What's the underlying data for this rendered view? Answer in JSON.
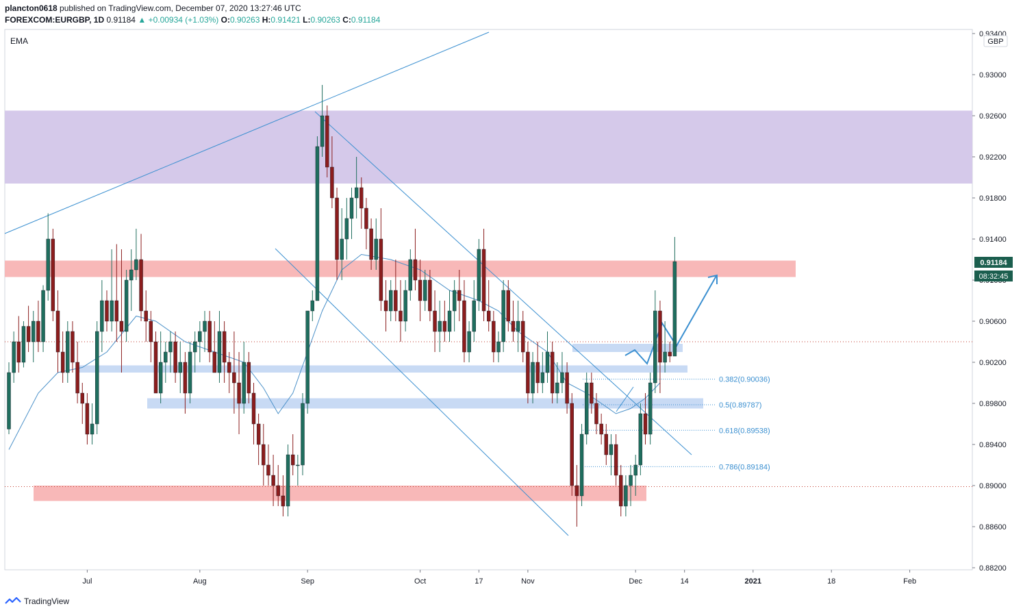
{
  "header": {
    "user": "plancton0618",
    "published": "published on TradingView.com, December 07, 2020 13:27:46 UTC",
    "symbol": "FOREXCOM:EURGBP, 1D",
    "last": "0.91184",
    "arrow": "▲",
    "change": "+0.00934 (+1.03%)",
    "o_label": "O:",
    "o_value": "0.90263",
    "h_label": "H:",
    "h_value": "0.91421",
    "l_label": "L:",
    "l_value": "0.90263",
    "c_label": "C:",
    "c_value": "0.91184"
  },
  "indicator_label": "EMA",
  "currency_badge": "GBP",
  "price_tag": "0.91184",
  "countdown_tag": "08:32:45",
  "brand": "TradingView",
  "colors": {
    "up": "#1f6e5e",
    "down": "#8b1d1d",
    "ema": "#4a90c8",
    "trend": "#3a8fd0",
    "resistance_zone": "#d5c9ea",
    "sr_red": "#f8b8b8",
    "sr_blue": "#c8daf4",
    "fib": "#3a8fd0",
    "price_bg": "#1b5e4e",
    "dotted_red": "#c0392b"
  },
  "chart_data": {
    "type": "candlestick",
    "yaxis": {
      "min": 0.882,
      "max": 0.934,
      "ticks": [
        "0.93400",
        "0.93000",
        "0.92600",
        "0.92200",
        "0.91800",
        "0.91400",
        "0.91000",
        "0.90600",
        "0.90200",
        "0.89800",
        "0.89400",
        "0.89000",
        "0.88600",
        "0.88200"
      ]
    },
    "xaxis": {
      "ticks": [
        {
          "label": "Jul",
          "bar": 16
        },
        {
          "label": "Aug",
          "bar": 39
        },
        {
          "label": "Sep",
          "bar": 61
        },
        {
          "label": "Oct",
          "bar": 84
        },
        {
          "label": "17",
          "bar": 96
        },
        {
          "label": "Nov",
          "bar": 106
        },
        {
          "label": "Dec",
          "bar": 128
        },
        {
          "label": "14",
          "bar": 138
        },
        {
          "label": "2021",
          "bar": 152
        },
        {
          "label": "18",
          "bar": 168
        },
        {
          "label": "Feb",
          "bar": 184
        }
      ]
    },
    "candles": [
      [
        0.8955,
        0.902,
        0.895,
        0.901
      ],
      [
        0.901,
        0.905,
        0.9,
        0.904
      ],
      [
        0.904,
        0.9065,
        0.901,
        0.902
      ],
      [
        0.902,
        0.906,
        0.9015,
        0.9055
      ],
      [
        0.9055,
        0.9075,
        0.903,
        0.904
      ],
      [
        0.904,
        0.907,
        0.902,
        0.906
      ],
      [
        0.906,
        0.908,
        0.903,
        0.904
      ],
      [
        0.904,
        0.9095,
        0.903,
        0.909
      ],
      [
        0.909,
        0.9165,
        0.908,
        0.914
      ],
      [
        0.914,
        0.915,
        0.906,
        0.907
      ],
      [
        0.907,
        0.909,
        0.901,
        0.903
      ],
      [
        0.903,
        0.905,
        0.9,
        0.901
      ],
      [
        0.901,
        0.906,
        0.9,
        0.905
      ],
      [
        0.905,
        0.906,
        0.901,
        0.902
      ],
      [
        0.902,
        0.904,
        0.898,
        0.899
      ],
      [
        0.899,
        0.9,
        0.896,
        0.898
      ],
      [
        0.898,
        0.899,
        0.894,
        0.895
      ],
      [
        0.895,
        0.898,
        0.894,
        0.896
      ],
      [
        0.896,
        0.906,
        0.895,
        0.905
      ],
      [
        0.905,
        0.91,
        0.903,
        0.908
      ],
      [
        0.908,
        0.909,
        0.905,
        0.906
      ],
      [
        0.906,
        0.913,
        0.905,
        0.908
      ],
      [
        0.908,
        0.9135,
        0.904,
        0.906
      ],
      [
        0.906,
        0.913,
        0.901,
        0.905
      ],
      [
        0.905,
        0.911,
        0.904,
        0.91
      ],
      [
        0.91,
        0.913,
        0.907,
        0.911
      ],
      [
        0.911,
        0.915,
        0.91,
        0.912
      ],
      [
        0.912,
        0.9145,
        0.906,
        0.907
      ],
      [
        0.907,
        0.909,
        0.904,
        0.906
      ],
      [
        0.906,
        0.907,
        0.902,
        0.904
      ],
      [
        0.904,
        0.905,
        0.899,
        0.899
      ],
      [
        0.899,
        0.905,
        0.898,
        0.902
      ],
      [
        0.902,
        0.904,
        0.9,
        0.903
      ],
      [
        0.903,
        0.905,
        0.901,
        0.904
      ],
      [
        0.904,
        0.905,
        0.9,
        0.901
      ],
      [
        0.901,
        0.904,
        0.899,
        0.902
      ],
      [
        0.902,
        0.903,
        0.897,
        0.899
      ],
      [
        0.899,
        0.904,
        0.898,
        0.903
      ],
      [
        0.903,
        0.905,
        0.901,
        0.904
      ],
      [
        0.904,
        0.906,
        0.902,
        0.905
      ],
      [
        0.905,
        0.907,
        0.903,
        0.906
      ],
      [
        0.906,
        0.907,
        0.902,
        0.903
      ],
      [
        0.903,
        0.906,
        0.901,
        0.901
      ],
      [
        0.901,
        0.907,
        0.9,
        0.905
      ],
      [
        0.905,
        0.906,
        0.9,
        0.902
      ],
      [
        0.902,
        0.903,
        0.899,
        0.901
      ],
      [
        0.901,
        0.905,
        0.897,
        0.9
      ],
      [
        0.9,
        0.903,
        0.895,
        0.898
      ],
      [
        0.898,
        0.904,
        0.897,
        0.902
      ],
      [
        0.902,
        0.903,
        0.898,
        0.899
      ],
      [
        0.899,
        0.9,
        0.894,
        0.896
      ],
      [
        0.896,
        0.897,
        0.892,
        0.894
      ],
      [
        0.894,
        0.896,
        0.89,
        0.892
      ],
      [
        0.892,
        0.894,
        0.89,
        0.891
      ],
      [
        0.891,
        0.893,
        0.888,
        0.89
      ],
      [
        0.89,
        0.892,
        0.888,
        0.889
      ],
      [
        0.889,
        0.891,
        0.887,
        0.888
      ],
      [
        0.888,
        0.894,
        0.887,
        0.893
      ],
      [
        0.893,
        0.895,
        0.891,
        0.892
      ],
      [
        0.892,
        0.893,
        0.89,
        0.892
      ],
      [
        0.892,
        0.899,
        0.891,
        0.898
      ],
      [
        0.898,
        0.907,
        0.897,
        0.907
      ],
      [
        0.907,
        0.909,
        0.906,
        0.908
      ],
      [
        0.908,
        0.924,
        0.908,
        0.923
      ],
      [
        0.923,
        0.929,
        0.922,
        0.926
      ],
      [
        0.926,
        0.927,
        0.92,
        0.921
      ],
      [
        0.921,
        0.924,
        0.917,
        0.918
      ],
      [
        0.918,
        0.919,
        0.91,
        0.912
      ],
      [
        0.912,
        0.917,
        0.91,
        0.914
      ],
      [
        0.914,
        0.918,
        0.912,
        0.916
      ],
      [
        0.916,
        0.919,
        0.914,
        0.918
      ],
      [
        0.918,
        0.922,
        0.916,
        0.919
      ],
      [
        0.919,
        0.92,
        0.915,
        0.917
      ],
      [
        0.917,
        0.918,
        0.913,
        0.915
      ],
      [
        0.915,
        0.916,
        0.911,
        0.912
      ],
      [
        0.912,
        0.916,
        0.911,
        0.914
      ],
      [
        0.914,
        0.917,
        0.907,
        0.908
      ],
      [
        0.908,
        0.91,
        0.905,
        0.907
      ],
      [
        0.907,
        0.91,
        0.906,
        0.909
      ],
      [
        0.909,
        0.912,
        0.906,
        0.907
      ],
      [
        0.907,
        0.91,
        0.904,
        0.906
      ],
      [
        0.906,
        0.91,
        0.905,
        0.909
      ],
      [
        0.909,
        0.913,
        0.908,
        0.912
      ],
      [
        0.912,
        0.915,
        0.909,
        0.91
      ],
      [
        0.91,
        0.912,
        0.906,
        0.908
      ],
      [
        0.908,
        0.911,
        0.907,
        0.91
      ],
      [
        0.91,
        0.911,
        0.906,
        0.907
      ],
      [
        0.907,
        0.909,
        0.903,
        0.905
      ],
      [
        0.905,
        0.908,
        0.903,
        0.906
      ],
      [
        0.906,
        0.908,
        0.904,
        0.905
      ],
      [
        0.905,
        0.909,
        0.904,
        0.907
      ],
      [
        0.907,
        0.91,
        0.905,
        0.909
      ],
      [
        0.909,
        0.911,
        0.906,
        0.908
      ],
      [
        0.908,
        0.91,
        0.902,
        0.903
      ],
      [
        0.903,
        0.906,
        0.902,
        0.905
      ],
      [
        0.905,
        0.91,
        0.904,
        0.908
      ],
      [
        0.908,
        0.914,
        0.907,
        0.913
      ],
      [
        0.913,
        0.915,
        0.906,
        0.907
      ],
      [
        0.907,
        0.91,
        0.905,
        0.906
      ],
      [
        0.906,
        0.907,
        0.902,
        0.903
      ],
      [
        0.903,
        0.905,
        0.902,
        0.904
      ],
      [
        0.904,
        0.91,
        0.903,
        0.909
      ],
      [
        0.909,
        0.91,
        0.905,
        0.906
      ],
      [
        0.906,
        0.908,
        0.904,
        0.905
      ],
      [
        0.905,
        0.908,
        0.903,
        0.906
      ],
      [
        0.906,
        0.907,
        0.902,
        0.903
      ],
      [
        0.903,
        0.904,
        0.898,
        0.899
      ],
      [
        0.899,
        0.903,
        0.898,
        0.902
      ],
      [
        0.902,
        0.904,
        0.899,
        0.9
      ],
      [
        0.9,
        0.903,
        0.899,
        0.901
      ],
      [
        0.901,
        0.905,
        0.9,
        0.903
      ],
      [
        0.903,
        0.904,
        0.898,
        0.899
      ],
      [
        0.899,
        0.902,
        0.898,
        0.9
      ],
      [
        0.9,
        0.903,
        0.899,
        0.901
      ],
      [
        0.901,
        0.902,
        0.897,
        0.898
      ],
      [
        0.898,
        0.899,
        0.889,
        0.89
      ],
      [
        0.89,
        0.892,
        0.886,
        0.889
      ],
      [
        0.889,
        0.896,
        0.888,
        0.895
      ],
      [
        0.895,
        0.901,
        0.894,
        0.9
      ],
      [
        0.9,
        0.901,
        0.897,
        0.898
      ],
      [
        0.898,
        0.899,
        0.895,
        0.896
      ],
      [
        0.896,
        0.897,
        0.894,
        0.895
      ],
      [
        0.895,
        0.896,
        0.892,
        0.893
      ],
      [
        0.893,
        0.895,
        0.891,
        0.894
      ],
      [
        0.894,
        0.895,
        0.89,
        0.891
      ],
      [
        0.891,
        0.892,
        0.887,
        0.888
      ],
      [
        0.888,
        0.891,
        0.887,
        0.89
      ],
      [
        0.89,
        0.892,
        0.888,
        0.891
      ],
      [
        0.891,
        0.893,
        0.889,
        0.892
      ],
      [
        0.892,
        0.898,
        0.891,
        0.897
      ],
      [
        0.897,
        0.899,
        0.894,
        0.895
      ],
      [
        0.895,
        0.901,
        0.894,
        0.9
      ],
      [
        0.9,
        0.909,
        0.899,
        0.907
      ],
      [
        0.907,
        0.908,
        0.899,
        0.902
      ],
      [
        0.902,
        0.906,
        0.901,
        0.903
      ],
      [
        0.903,
        0.904,
        0.902,
        0.9026
      ],
      [
        0.9026,
        0.9142,
        0.9026,
        0.9118
      ]
    ],
    "ema": [
      [
        0,
        0.8935
      ],
      [
        6,
        0.899
      ],
      [
        10,
        0.901
      ],
      [
        15,
        0.9015
      ],
      [
        20,
        0.903
      ],
      [
        26,
        0.9065
      ],
      [
        30,
        0.906
      ],
      [
        36,
        0.904
      ],
      [
        42,
        0.903
      ],
      [
        48,
        0.902
      ],
      [
        52,
        0.8995
      ],
      [
        55,
        0.897
      ],
      [
        58,
        0.899
      ],
      [
        61,
        0.903
      ],
      [
        64,
        0.907
      ],
      [
        68,
        0.911
      ],
      [
        72,
        0.9125
      ],
      [
        78,
        0.912
      ],
      [
        84,
        0.911
      ],
      [
        90,
        0.909
      ],
      [
        96,
        0.908
      ],
      [
        100,
        0.907
      ],
      [
        104,
        0.905
      ],
      [
        110,
        0.903
      ],
      [
        114,
        0.9
      ],
      [
        118,
        0.899
      ],
      [
        121,
        0.898
      ],
      [
        124,
        0.897
      ],
      [
        127,
        0.8975
      ],
      [
        130,
        0.8985
      ],
      [
        133,
        0.9
      ]
    ],
    "fib_levels": [
      {
        "label": "0.382(0.90036)",
        "price": 0.90036
      },
      {
        "label": "0.5(0.89787)",
        "price": 0.89787
      },
      {
        "label": "0.618(0.89538)",
        "price": 0.89538
      },
      {
        "label": "0.786(0.89184)",
        "price": 0.89184
      }
    ],
    "zones": [
      {
        "kind": "resistance",
        "from_price": 0.9194,
        "to_price": 0.9265
      },
      {
        "kind": "red",
        "from_price": 0.9103,
        "to_price": 0.9119
      },
      {
        "kind": "blue",
        "from_price": 0.903,
        "to_price": 0.9038
      },
      {
        "kind": "blue",
        "from_price": 0.901,
        "to_price": 0.9017
      },
      {
        "kind": "blue",
        "from_price": 0.8975,
        "to_price": 0.8985
      },
      {
        "kind": "red",
        "from_price": 0.8885,
        "to_price": 0.89
      }
    ],
    "dotted_lines": [
      0.904,
      0.8899
    ]
  }
}
